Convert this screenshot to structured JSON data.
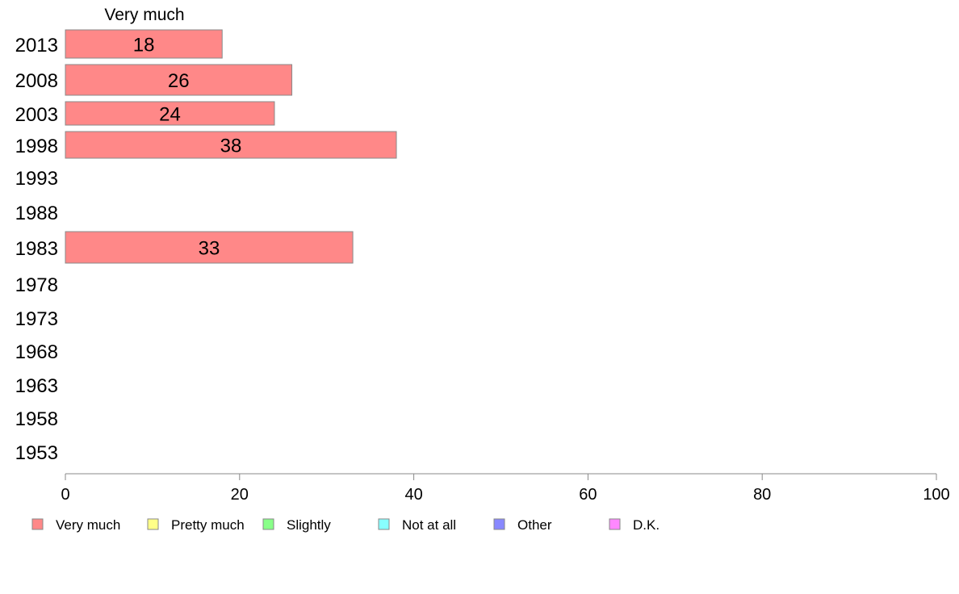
{
  "chart_data": {
    "type": "bar",
    "orientation": "horizontal",
    "series_heading": "Very much",
    "categories": [
      "2013",
      "2008",
      "2003",
      "1998",
      "1993",
      "1988",
      "1983",
      "1978",
      "1973",
      "1968",
      "1963",
      "1958",
      "1953"
    ],
    "series": [
      {
        "name": "Very much",
        "color": "#ff8888",
        "values": [
          18,
          26,
          24,
          38,
          null,
          null,
          33,
          null,
          null,
          null,
          null,
          null,
          null
        ]
      }
    ],
    "data_labels": [
      "18",
      "26",
      "24",
      "38",
      "",
      "",
      "33",
      "",
      "",
      "",
      "",
      "",
      ""
    ],
    "xlim": [
      0,
      100
    ],
    "xticks": [
      0,
      20,
      40,
      60,
      80,
      100
    ],
    "grid": false,
    "legend_position": "bottom",
    "legend": [
      {
        "label": "Very much",
        "color": "#ff8888"
      },
      {
        "label": "Pretty much",
        "color": "#ffff88"
      },
      {
        "label": "Slightly",
        "color": "#88ff88"
      },
      {
        "label": "Not at all",
        "color": "#88ffff"
      },
      {
        "label": "Other",
        "color": "#8888ff"
      },
      {
        "label": "D.K.",
        "color": "#ff88ff"
      }
    ]
  }
}
